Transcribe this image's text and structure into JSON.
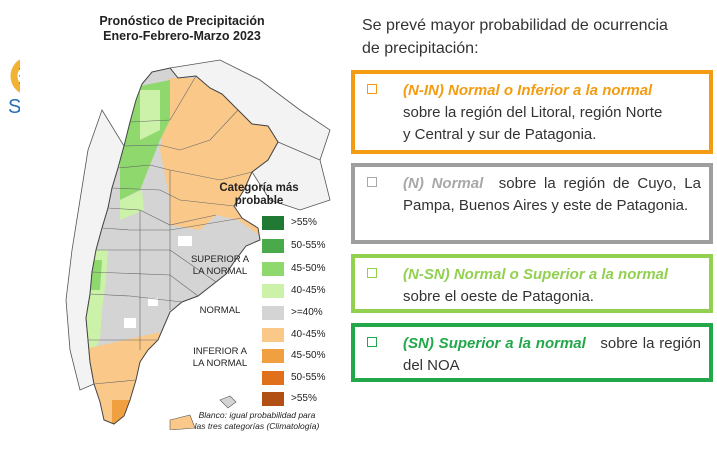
{
  "map_title": [
    "Pronóstico de Precipitación",
    "Enero-Febrero-Marzo 2023"
  ],
  "logo_text": "SMN",
  "legend": {
    "title": [
      "Categoría más",
      "probable"
    ],
    "items": [
      {
        "label": ">55%",
        "color": "#217a33"
      },
      {
        "label": "50-55%",
        "color": "#4aaa4a"
      },
      {
        "label": "45-50%",
        "color": "#8ed86e"
      },
      {
        "label": "40-45%",
        "color": "#ccf2aa"
      },
      {
        "label": ">=40%",
        "color": "#d4d4d4"
      },
      {
        "label": "40-45%",
        "color": "#fac98a"
      },
      {
        "label": "45-50%",
        "color": "#f0a040"
      },
      {
        "label": "50-55%",
        "color": "#e0701c"
      },
      {
        "label": ">55%",
        "color": "#b05012"
      }
    ],
    "groups": {
      "superior": [
        "SUPERIOR A",
        "LA NORMAL"
      ],
      "normal": "NORMAL",
      "inferior": [
        "INFERIOR A",
        "LA NORMAL"
      ]
    },
    "note": [
      "Blanco: igual probabilidad para",
      "las tres categorías (Climatología)"
    ]
  },
  "intro": [
    "Se prevé mayor probabilidad de ocurrencia",
    "de precipitación:"
  ],
  "boxes": [
    {
      "border": "#f39c12",
      "hl_color": "#f39c12",
      "highlight": "(N-IN) Normal o Inferior a la normal",
      "rest": [
        "sobre la región del Litoral, región Norte",
        "y Central y sur de Patagonia."
      ]
    },
    {
      "border": "#9e9e9e",
      "hl_color": "#a8a8a8",
      "highlight": "(N) Normal",
      "rest_inline": "sobre la región de Cuyo, La Pampa, Buenos Aires y este de Patagonia."
    },
    {
      "border": "#92d050",
      "hl_color": "#92d050",
      "highlight": "(N-SN) Normal o Superior a la normal",
      "rest": [
        "sobre el oeste de Patagonia."
      ]
    },
    {
      "border": "#22a84a",
      "hl_color": "#22a84a",
      "highlight": "(SN) Superior a la normal",
      "rest_inline": "sobre la región del NOA"
    }
  ]
}
